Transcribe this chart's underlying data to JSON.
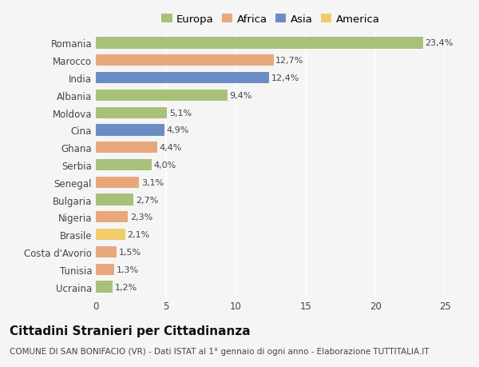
{
  "countries": [
    "Romania",
    "Marocco",
    "India",
    "Albania",
    "Moldova",
    "Cina",
    "Ghana",
    "Serbia",
    "Senegal",
    "Bulgaria",
    "Nigeria",
    "Brasile",
    "Costa d'Avorio",
    "Tunisia",
    "Ucraina"
  ],
  "values": [
    23.4,
    12.7,
    12.4,
    9.4,
    5.1,
    4.9,
    4.4,
    4.0,
    3.1,
    2.7,
    2.3,
    2.1,
    1.5,
    1.3,
    1.2
  ],
  "labels": [
    "23,4%",
    "12,7%",
    "12,4%",
    "9,4%",
    "5,1%",
    "4,9%",
    "4,4%",
    "4,0%",
    "3,1%",
    "2,7%",
    "2,3%",
    "2,1%",
    "1,5%",
    "1,3%",
    "1,2%"
  ],
  "continents": [
    "Europa",
    "Africa",
    "Asia",
    "Europa",
    "Europa",
    "Asia",
    "Africa",
    "Europa",
    "Africa",
    "Europa",
    "Africa",
    "America",
    "Africa",
    "Africa",
    "Europa"
  ],
  "colors": {
    "Europa": "#a8c07a",
    "Africa": "#e8a87c",
    "Asia": "#6b8dc4",
    "America": "#f0cc6a"
  },
  "legend_order": [
    "Europa",
    "Africa",
    "Asia",
    "America"
  ],
  "title": "Cittadini Stranieri per Cittadinanza",
  "subtitle": "COMUNE DI SAN BONIFACIO (VR) - Dati ISTAT al 1° gennaio di ogni anno - Elaborazione TUTTITALIA.IT",
  "xlim": [
    0,
    25
  ],
  "xticks": [
    0,
    5,
    10,
    15,
    20,
    25
  ],
  "background_color": "#f5f5f5",
  "grid_color": "#ffffff",
  "bar_height": 0.65,
  "title_fontsize": 11,
  "subtitle_fontsize": 7.5,
  "label_fontsize": 8,
  "tick_fontsize": 8.5,
  "legend_fontsize": 9.5
}
